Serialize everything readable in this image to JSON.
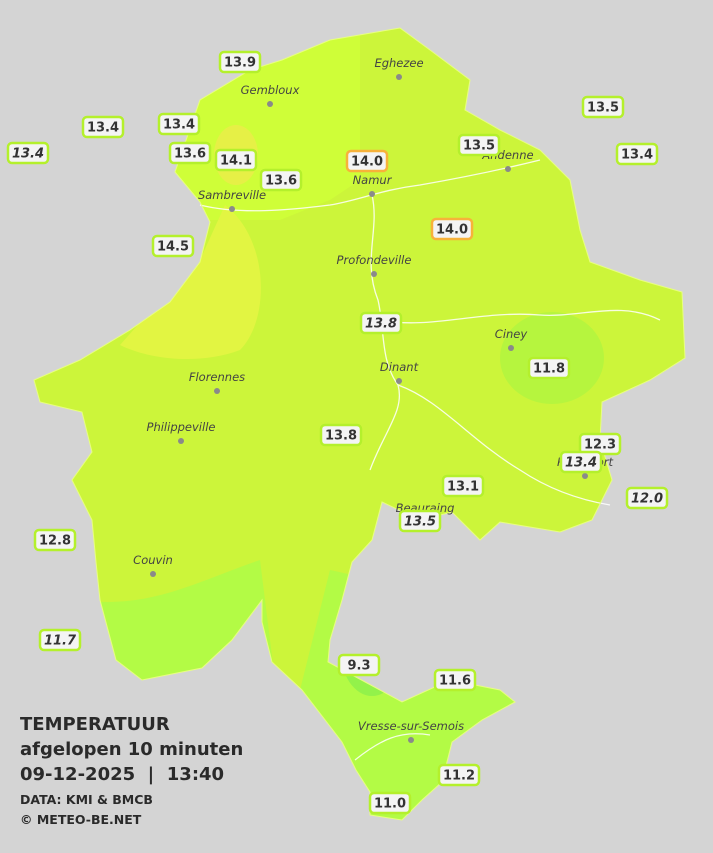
{
  "title": "TEMPERATUUR",
  "subtitle": "afgelopen 10 minuten",
  "timestamp": "09-12-2025  |  13:40",
  "source": "DATA: KMI & BMCB",
  "copyright": "© METEO-BE.NET",
  "towns": [
    "Eghezee",
    "Gembloux",
    "Andenne",
    "Namur",
    "Sambreville",
    "Profondeville",
    "Ciney",
    "Dinant",
    "Florennes",
    "Philippeville",
    "Rochefort",
    "Beauraing",
    "Couvin",
    "Vresse-sur-Semois"
  ],
  "stations": [
    "13.9",
    "13.4",
    "13.4",
    "13.4",
    "13.6",
    "14.1",
    "13.6",
    "14.0",
    "13.5",
    "13.5",
    "13.4",
    "14.0",
    "14.5",
    "13.8",
    "11.8",
    "13.8",
    "12.3",
    "13.4",
    "13.1",
    "13.5",
    "12.0",
    "12.8",
    "11.7",
    "9.3",
    "11.6",
    "11.2",
    "11.0"
  ]
}
